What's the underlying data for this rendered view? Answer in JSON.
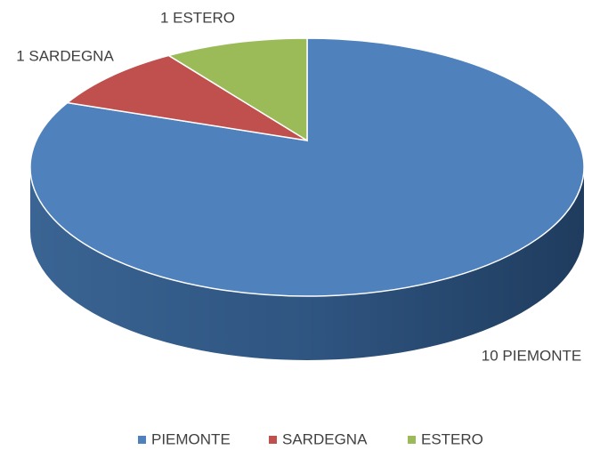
{
  "chart_data": {
    "type": "pie",
    "categories": [
      "PIEMONTE",
      "SARDEGNA",
      "ESTERO"
    ],
    "values": [
      10,
      1,
      1
    ],
    "value_labels": [
      "10 PIEMONTE",
      "1 SARDEGNA",
      "1 ESTERO"
    ],
    "colors": [
      "#4f81bd",
      "#c0504d",
      "#9bbb59"
    ],
    "legend": "bottom"
  }
}
